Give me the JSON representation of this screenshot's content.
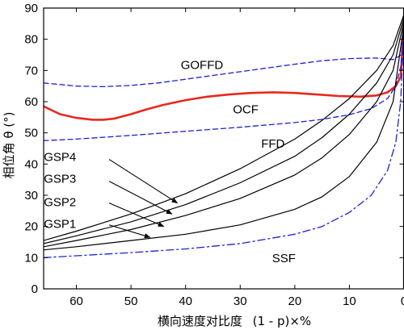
{
  "chart_data": {
    "type": "line",
    "xlabel_prefix": "横向速度对比度",
    "xlabel_math": "(1 - p)×%",
    "ylabel": "相位角 θ (°)",
    "xlim": [
      66,
      0
    ],
    "ylim": [
      0,
      90
    ],
    "x_ticks": [
      60,
      50,
      40,
      30,
      20,
      10,
      0
    ],
    "y_ticks": [
      0,
      10,
      20,
      30,
      40,
      50,
      60,
      70,
      80,
      90
    ],
    "grid": false,
    "series": [
      {
        "name": "GOFFD",
        "color": "#1f1fd6",
        "style": "dashed",
        "width": 1.3,
        "x": [
          66,
          60,
          55,
          50,
          45,
          40,
          35,
          30,
          25,
          20,
          15,
          10,
          5,
          2,
          0.5,
          0
        ],
        "y": [
          66,
          65,
          64.8,
          65.2,
          66,
          67.2,
          68.4,
          69.6,
          70.8,
          72,
          73.1,
          73.8,
          74,
          73.5,
          75,
          88
        ]
      },
      {
        "name": "OCF",
        "color": "#e8281e",
        "style": "solid",
        "width": 2.6,
        "x": [
          66,
          63,
          60,
          57,
          55,
          53,
          50,
          47,
          44,
          40,
          36,
          32,
          28,
          24,
          20,
          16,
          12,
          8,
          5,
          3,
          1.5,
          0.6,
          0
        ],
        "y": [
          58.5,
          56,
          54.8,
          54.2,
          54.2,
          54.6,
          56,
          57.6,
          59,
          60.5,
          61.6,
          62.3,
          62.8,
          63,
          62.8,
          62.3,
          61.8,
          61.6,
          62,
          63,
          65,
          68,
          85
        ]
      },
      {
        "name": "FFD",
        "color": "#1f1fd6",
        "style": "dashed",
        "width": 1.3,
        "x": [
          66,
          60,
          50,
          40,
          30,
          20,
          15,
          10,
          6,
          3,
          1.5,
          0.5,
          0
        ],
        "y": [
          47.5,
          48,
          49.2,
          50.5,
          51.8,
          53.3,
          54.3,
          55.8,
          57.8,
          61,
          65,
          72,
          85
        ]
      },
      {
        "name": "GSP4",
        "color": "#000000",
        "style": "solid",
        "width": 1.2,
        "x": [
          66,
          60,
          50,
          40,
          30,
          20,
          15,
          10,
          5,
          2,
          0
        ],
        "y": [
          15.5,
          18.5,
          24,
          30.5,
          38.5,
          48,
          54,
          61,
          70,
          78,
          88
        ]
      },
      {
        "name": "GSP3",
        "color": "#000000",
        "style": "solid",
        "width": 1.2,
        "x": [
          66,
          60,
          50,
          40,
          30,
          20,
          15,
          10,
          5,
          2,
          0
        ],
        "y": [
          14.5,
          17,
          21.5,
          27,
          34,
          42.5,
          48.5,
          56,
          66,
          75,
          87
        ]
      },
      {
        "name": "GSP2",
        "color": "#000000",
        "style": "solid",
        "width": 1.2,
        "x": [
          66,
          60,
          50,
          40,
          30,
          20,
          15,
          10,
          5,
          2,
          0
        ],
        "y": [
          13.5,
          15.5,
          19,
          23.5,
          29,
          36.5,
          42,
          49.5,
          60,
          70,
          86
        ]
      },
      {
        "name": "GSP1",
        "color": "#000000",
        "style": "solid",
        "width": 1.2,
        "x": [
          66,
          60,
          50,
          40,
          30,
          20,
          15,
          10,
          5,
          2,
          0
        ],
        "y": [
          12.5,
          13.5,
          15.5,
          17.5,
          20.5,
          25.5,
          29.5,
          36,
          47,
          60,
          85
        ]
      },
      {
        "name": "SSF",
        "color": "#1f1fd6",
        "style": "dashdot",
        "width": 1.3,
        "x": [
          66,
          60,
          50,
          40,
          30,
          20,
          15,
          10,
          6,
          3,
          1.5,
          0.6,
          0
        ],
        "y": [
          10,
          10.6,
          11.6,
          12.8,
          14.5,
          17.5,
          20,
          24.5,
          30,
          38,
          47,
          60,
          85
        ]
      }
    ],
    "annotations": [
      {
        "text": "GOFFD",
        "x": 37,
        "y": 71.5
      },
      {
        "text": "OCF",
        "x": 29,
        "y": 57.3
      },
      {
        "text": "FFD",
        "x": 24,
        "y": 46.3
      },
      {
        "text": "SSF",
        "x": 22,
        "y": 9.5
      },
      {
        "text": "GSP4",
        "x": 63,
        "y": 42
      },
      {
        "text": "GSP3",
        "x": 63,
        "y": 35
      },
      {
        "text": "GSP2",
        "x": 63,
        "y": 27.5
      },
      {
        "text": "GSP1",
        "x": 63,
        "y": 20.5
      }
    ],
    "arrows": [
      {
        "label": "GSP4",
        "from": [
          54,
          41.5
        ],
        "to": [
          41.5,
          27.5
        ]
      },
      {
        "label": "GSP3",
        "from": [
          54,
          34.5
        ],
        "to": [
          42.5,
          24
        ]
      },
      {
        "label": "GSP2",
        "from": [
          54,
          27.5
        ],
        "to": [
          44,
          20
        ]
      },
      {
        "label": "GSP1",
        "from": [
          54,
          20.5
        ],
        "to": [
          46.5,
          16.5
        ]
      }
    ]
  }
}
